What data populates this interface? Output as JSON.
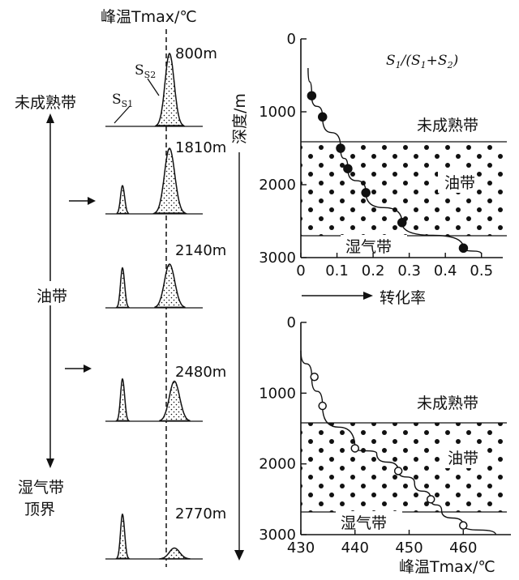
{
  "left_panel": {
    "top_axis_label": "峰温Tmax/℃",
    "zone_labels": [
      "未成熟带",
      "油带",
      "湿气带",
      "顶界"
    ],
    "peak_labels": {
      "s1": "S1",
      "s2": "S2"
    },
    "samples": [
      {
        "depth": "800m",
        "s1": 0.02,
        "s2": 1.0
      },
      {
        "depth": "1810m",
        "s1": 0.6,
        "s2": 0.9
      },
      {
        "depth": "2140m",
        "s1": 0.85,
        "s2": 0.6
      },
      {
        "depth": "2480m",
        "s1": 0.9,
        "s2": 0.55
      },
      {
        "depth": "2770m",
        "s1": 0.95,
        "s2": 0.15
      }
    ]
  },
  "chart_data": [
    {
      "type": "line",
      "title": "S1/(S1+S2)",
      "xlabel": "转化率",
      "ylabel": "深度/m",
      "xlim": [
        0,
        0.55
      ],
      "ylim": [
        3000,
        0
      ],
      "x_ticks": [
        "0",
        "0.1",
        "0.2",
        "0.3",
        "0.4",
        "0.5"
      ],
      "y_ticks": [
        "0",
        "1000",
        "2000",
        "3000"
      ],
      "series": [
        {
          "values_xy": [
            [
              0.02,
              400
            ],
            [
              0.03,
              780
            ],
            [
              0.06,
              1070
            ],
            [
              0.11,
              1500
            ],
            [
              0.13,
              1780
            ],
            [
              0.18,
              2110
            ],
            [
              0.28,
              2520
            ],
            [
              0.45,
              2870
            ],
            [
              0.5,
              2950
            ]
          ]
        }
      ],
      "markers": [
        [
          0.03,
          780
        ],
        [
          0.06,
          1070
        ],
        [
          0.11,
          1500
        ],
        [
          0.13,
          1780
        ],
        [
          0.18,
          2110
        ],
        [
          0.28,
          2520
        ],
        [
          0.45,
          2870
        ]
      ],
      "zones": [
        {
          "label": "未成熟带",
          "to": 1500
        },
        {
          "label": "油带",
          "from": 1500,
          "to": 2720
        },
        {
          "label": "湿气带",
          "from": 2720
        }
      ]
    },
    {
      "type": "line",
      "title": "",
      "xlabel": "峰温Tmax/℃",
      "ylabel": "",
      "xlim": [
        430,
        467
      ],
      "ylim": [
        3000,
        0
      ],
      "x_ticks": [
        "430",
        "440",
        "450",
        "460"
      ],
      "y_ticks": [
        "0",
        "1000",
        "2000",
        "3000"
      ],
      "series": [
        {
          "values_xy": [
            [
              430,
              400
            ],
            [
              432,
              770
            ],
            [
              434,
              1180
            ],
            [
              440,
              1780
            ],
            [
              444,
              1850
            ],
            [
              448,
              2100
            ],
            [
              451,
              2270
            ],
            [
              454,
              2500
            ],
            [
              456,
              2660
            ],
            [
              460,
              2870
            ],
            [
              466,
              3000
            ]
          ]
        }
      ],
      "markers": [
        [
          432.5,
          770
        ],
        [
          434,
          1180
        ],
        [
          440,
          1780
        ],
        [
          448,
          2100
        ],
        [
          454,
          2500
        ],
        [
          460,
          2870
        ]
      ],
      "zones": [
        {
          "label": "未成熟带",
          "to": 1500
        },
        {
          "label": "油带",
          "from": 1500,
          "to": 2720
        },
        {
          "label": "湿气带",
          "from": 2720
        }
      ]
    }
  ]
}
